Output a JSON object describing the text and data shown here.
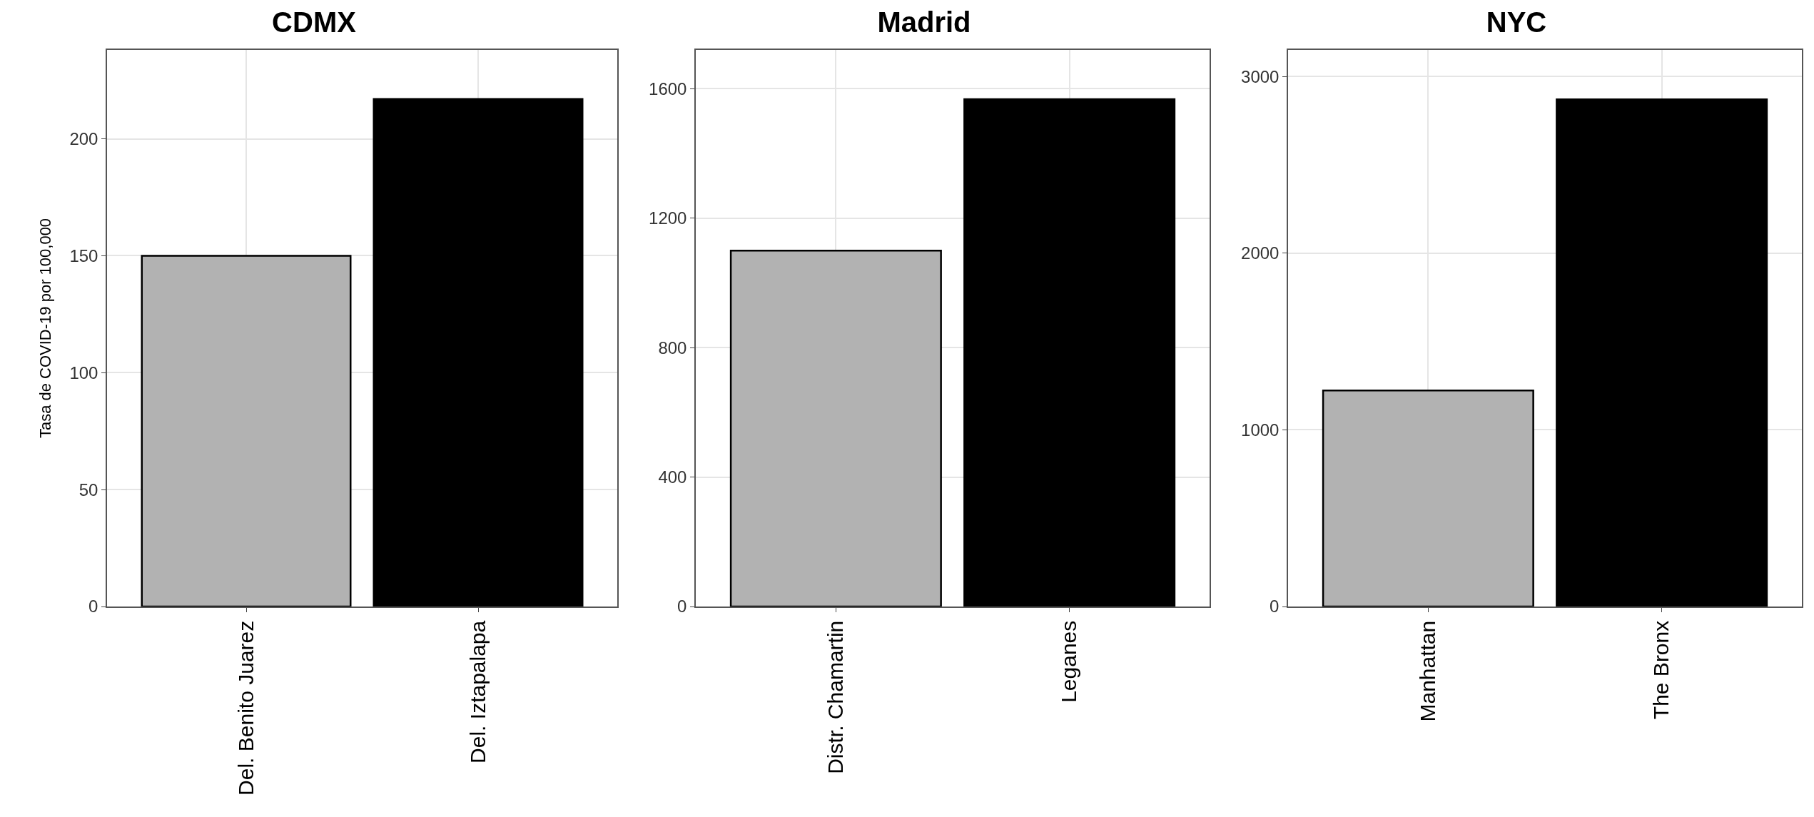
{
  "chart_data": [
    {
      "type": "bar",
      "title": "CDMX",
      "ylabel": "Tasa de COVID-19 por 100,000",
      "categories": [
        "Del. Benito Juarez",
        "Del. Iztapalapa"
      ],
      "values": [
        150,
        217
      ],
      "colors": [
        "#b2b2b2",
        "#000000"
      ],
      "ylim": [
        0,
        238
      ],
      "yticks": [
        0,
        50,
        100,
        150,
        200
      ],
      "grid": true
    },
    {
      "type": "bar",
      "title": "Madrid",
      "categories": [
        "Distr. Chamartin",
        "Leganes"
      ],
      "values": [
        1100,
        1568
      ],
      "colors": [
        "#b2b2b2",
        "#000000"
      ],
      "ylim": [
        0,
        1720
      ],
      "yticks": [
        0,
        400,
        800,
        1200,
        1600
      ],
      "grid": true
    },
    {
      "type": "bar",
      "title": "NYC",
      "categories": [
        "Manhattan",
        "The Bronx"
      ],
      "values": [
        1223,
        2870
      ],
      "colors": [
        "#b2b2b2",
        "#000000"
      ],
      "ylim": [
        0,
        3150
      ],
      "yticks": [
        0,
        1000,
        2000,
        3000
      ],
      "grid": true
    }
  ]
}
